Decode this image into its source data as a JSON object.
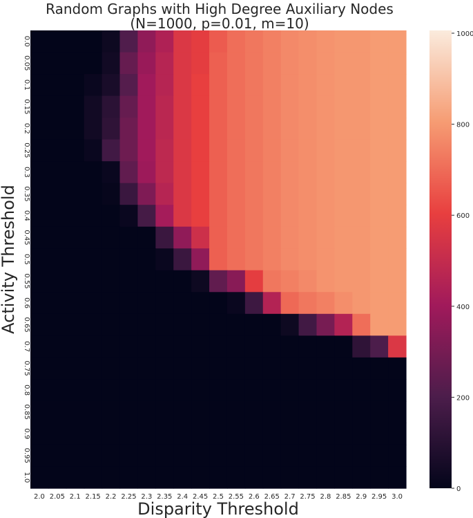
{
  "chart_data": {
    "type": "heatmap",
    "title": "Random Graphs with High Degree Auxiliary Nodes",
    "subtitle": "(N=1000, p=0.01, m=10)",
    "xlabel": "Disparity Threshold",
    "ylabel": "Activity Threshold",
    "x": [
      "2.0",
      "2.05",
      "2.1",
      "2.15",
      "2.2",
      "2.25",
      "2.3",
      "2.35",
      "2.4",
      "2.45",
      "2.5",
      "2.55",
      "2.6",
      "2.65",
      "2.7",
      "2.75",
      "2.8",
      "2.85",
      "2.9",
      "2.95",
      "3.0"
    ],
    "y": [
      "0.0",
      "0.05",
      "0.1",
      "0.15",
      "0.2",
      "0.25",
      "0.3",
      "0.35",
      "0.4",
      "0.45",
      "0.5",
      "0.55",
      "0.6",
      "0.65",
      "0.7",
      "0.75",
      "0.8",
      "0.85",
      "0.9",
      "0.95",
      "1.0"
    ],
    "values": [
      [
        0,
        0,
        0,
        0,
        30,
        210,
        360,
        440,
        560,
        590,
        660,
        700,
        720,
        740,
        760,
        770,
        780,
        790,
        790,
        800,
        800
      ],
      [
        0,
        0,
        0,
        0,
        40,
        260,
        380,
        460,
        560,
        590,
        670,
        700,
        720,
        740,
        760,
        770,
        780,
        790,
        790,
        800,
        800
      ],
      [
        0,
        0,
        0,
        20,
        60,
        220,
        400,
        460,
        560,
        600,
        670,
        700,
        720,
        740,
        760,
        770,
        780,
        790,
        790,
        800,
        800
      ],
      [
        0,
        0,
        0,
        40,
        110,
        260,
        400,
        470,
        560,
        600,
        670,
        700,
        720,
        740,
        760,
        770,
        780,
        790,
        790,
        800,
        800
      ],
      [
        0,
        0,
        0,
        40,
        120,
        280,
        400,
        470,
        560,
        600,
        670,
        700,
        720,
        740,
        760,
        770,
        780,
        790,
        790,
        800,
        800
      ],
      [
        0,
        0,
        0,
        20,
        170,
        280,
        400,
        480,
        560,
        600,
        670,
        700,
        720,
        740,
        760,
        770,
        780,
        790,
        790,
        800,
        800
      ],
      [
        0,
        0,
        0,
        0,
        20,
        250,
        390,
        480,
        560,
        600,
        670,
        700,
        720,
        740,
        760,
        770,
        780,
        790,
        790,
        800,
        800
      ],
      [
        0,
        0,
        0,
        0,
        10,
        150,
        320,
        460,
        560,
        600,
        670,
        700,
        720,
        740,
        760,
        770,
        780,
        790,
        790,
        800,
        800
      ],
      [
        0,
        0,
        0,
        0,
        0,
        20,
        180,
        410,
        560,
        600,
        670,
        700,
        720,
        740,
        760,
        770,
        780,
        790,
        790,
        800,
        800
      ],
      [
        0,
        0,
        0,
        0,
        0,
        0,
        0,
        150,
        360,
        520,
        670,
        700,
        720,
        740,
        760,
        770,
        780,
        790,
        790,
        800,
        800
      ],
      [
        0,
        0,
        0,
        0,
        0,
        0,
        0,
        20,
        150,
        360,
        670,
        700,
        720,
        740,
        760,
        770,
        780,
        790,
        790,
        800,
        800
      ],
      [
        0,
        0,
        0,
        0,
        0,
        0,
        0,
        0,
        0,
        30,
        250,
        340,
        590,
        720,
        740,
        760,
        780,
        790,
        790,
        800,
        800
      ],
      [
        0,
        0,
        0,
        0,
        0,
        0,
        0,
        0,
        0,
        0,
        0,
        20,
        160,
        450,
        690,
        720,
        740,
        770,
        790,
        800,
        800
      ],
      [
        0,
        0,
        0,
        0,
        0,
        0,
        0,
        0,
        0,
        0,
        0,
        0,
        0,
        0,
        30,
        170,
        300,
        450,
        700,
        800,
        800
      ],
      [
        0,
        0,
        0,
        0,
        0,
        0,
        0,
        0,
        0,
        0,
        0,
        0,
        0,
        0,
        0,
        0,
        0,
        0,
        120,
        200,
        560
      ],
      [
        0,
        0,
        0,
        0,
        0,
        0,
        0,
        0,
        0,
        0,
        0,
        0,
        0,
        0,
        0,
        0,
        0,
        0,
        0,
        0,
        0
      ],
      [
        0,
        0,
        0,
        0,
        0,
        0,
        0,
        0,
        0,
        0,
        0,
        0,
        0,
        0,
        0,
        0,
        0,
        0,
        0,
        0,
        0
      ],
      [
        0,
        0,
        0,
        0,
        0,
        0,
        0,
        0,
        0,
        0,
        0,
        0,
        0,
        0,
        0,
        0,
        0,
        0,
        0,
        0,
        0
      ],
      [
        0,
        0,
        0,
        0,
        0,
        0,
        0,
        0,
        0,
        0,
        0,
        0,
        0,
        0,
        0,
        0,
        0,
        0,
        0,
        0,
        0
      ],
      [
        0,
        0,
        0,
        0,
        0,
        0,
        0,
        0,
        0,
        0,
        0,
        0,
        0,
        0,
        0,
        0,
        0,
        0,
        0,
        0,
        0
      ],
      [
        0,
        0,
        0,
        0,
        0,
        0,
        0,
        0,
        0,
        0,
        0,
        0,
        0,
        0,
        0,
        0,
        0,
        0,
        0,
        0,
        0
      ]
    ],
    "colorbar": {
      "min": 0,
      "max": 1000,
      "ticks": [
        0,
        200,
        400,
        600,
        800,
        1000
      ],
      "colormap": "rocket",
      "stops": [
        "#03051a",
        "#4c1d4b",
        "#a11a5b",
        "#e83f3f",
        "#f69c73",
        "#faebdd"
      ]
    },
    "grid": false
  }
}
